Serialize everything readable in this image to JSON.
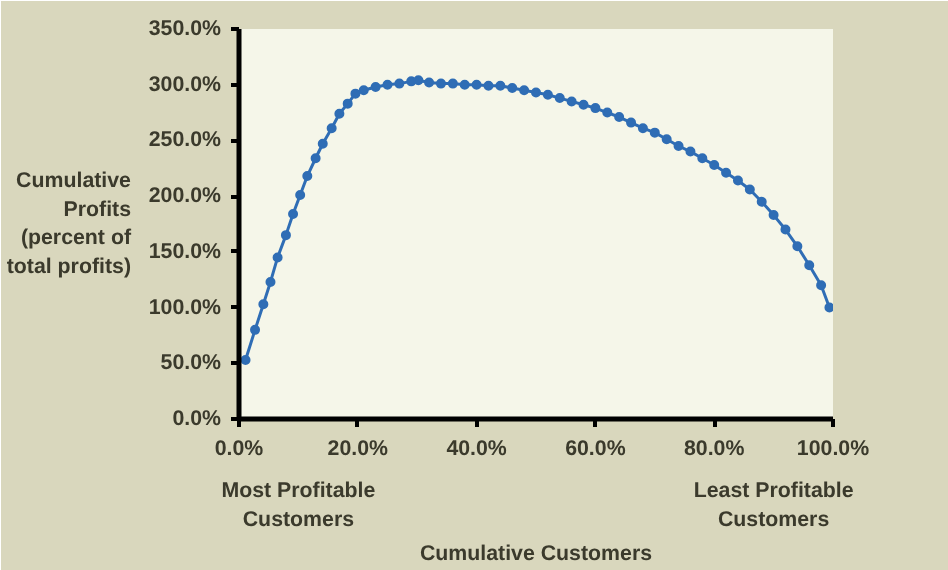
{
  "chart_data": {
    "type": "line",
    "xlabel": "Cumulative Customers",
    "ylabel": "Cumulative\nProfits\n(percent of\ntotal profits)",
    "annotations": [
      "Most Profitable\nCustomers",
      "Least Profitable\nCustomers"
    ],
    "x": [
      1.1,
      2.7,
      4.1,
      5.3,
      6.5,
      7.9,
      9.1,
      10.3,
      11.5,
      12.9,
      14.1,
      15.6,
      16.9,
      18.3,
      19.6,
      21.0,
      23,
      25,
      27,
      29,
      30.2,
      32,
      34,
      36,
      38,
      40,
      42,
      44,
      46,
      48,
      50,
      52,
      54,
      56,
      58,
      60,
      62,
      64,
      66,
      68,
      70,
      72,
      74,
      76,
      78,
      80,
      82,
      84,
      86,
      88,
      90,
      92,
      94,
      96,
      98,
      99.4
    ],
    "series": [
      {
        "color": "#2f6db5",
        "values": [
          53,
          80,
          103,
          123,
          145,
          165,
          184,
          201,
          218,
          234,
          247,
          261,
          274,
          283,
          292,
          295,
          298,
          300,
          301,
          303,
          304,
          302,
          301,
          301,
          300,
          300,
          299,
          299,
          297,
          295,
          293,
          291,
          288,
          285,
          282,
          279,
          275,
          271,
          266,
          261,
          257,
          251,
          245,
          240,
          234,
          228,
          221,
          214,
          206,
          195,
          183,
          170,
          155,
          138,
          120,
          100
        ]
      }
    ],
    "xlim": [
      0,
      100
    ],
    "ylim": [
      0,
      350
    ],
    "xticks": [
      {
        "value": 0,
        "label": "0.0%"
      },
      {
        "value": 20,
        "label": "20.0%"
      },
      {
        "value": 40,
        "label": "40.0%"
      },
      {
        "value": 60,
        "label": "60.0%"
      },
      {
        "value": 80,
        "label": "80.0%"
      },
      {
        "value": 100,
        "label": "100.0%"
      }
    ],
    "yticks": [
      {
        "value": 0,
        "label": "0.0%"
      },
      {
        "value": 50,
        "label": "50.0%"
      },
      {
        "value": 100,
        "label": "100.0%"
      },
      {
        "value": 150,
        "label": "150.0%"
      },
      {
        "value": 200,
        "label": "200.0%"
      },
      {
        "value": 250,
        "label": "250.0%"
      },
      {
        "value": 300,
        "label": "300.0%"
      },
      {
        "value": 350,
        "label": "350.0%"
      }
    ],
    "grid": false,
    "marker": "circle",
    "line_style": "solid"
  }
}
